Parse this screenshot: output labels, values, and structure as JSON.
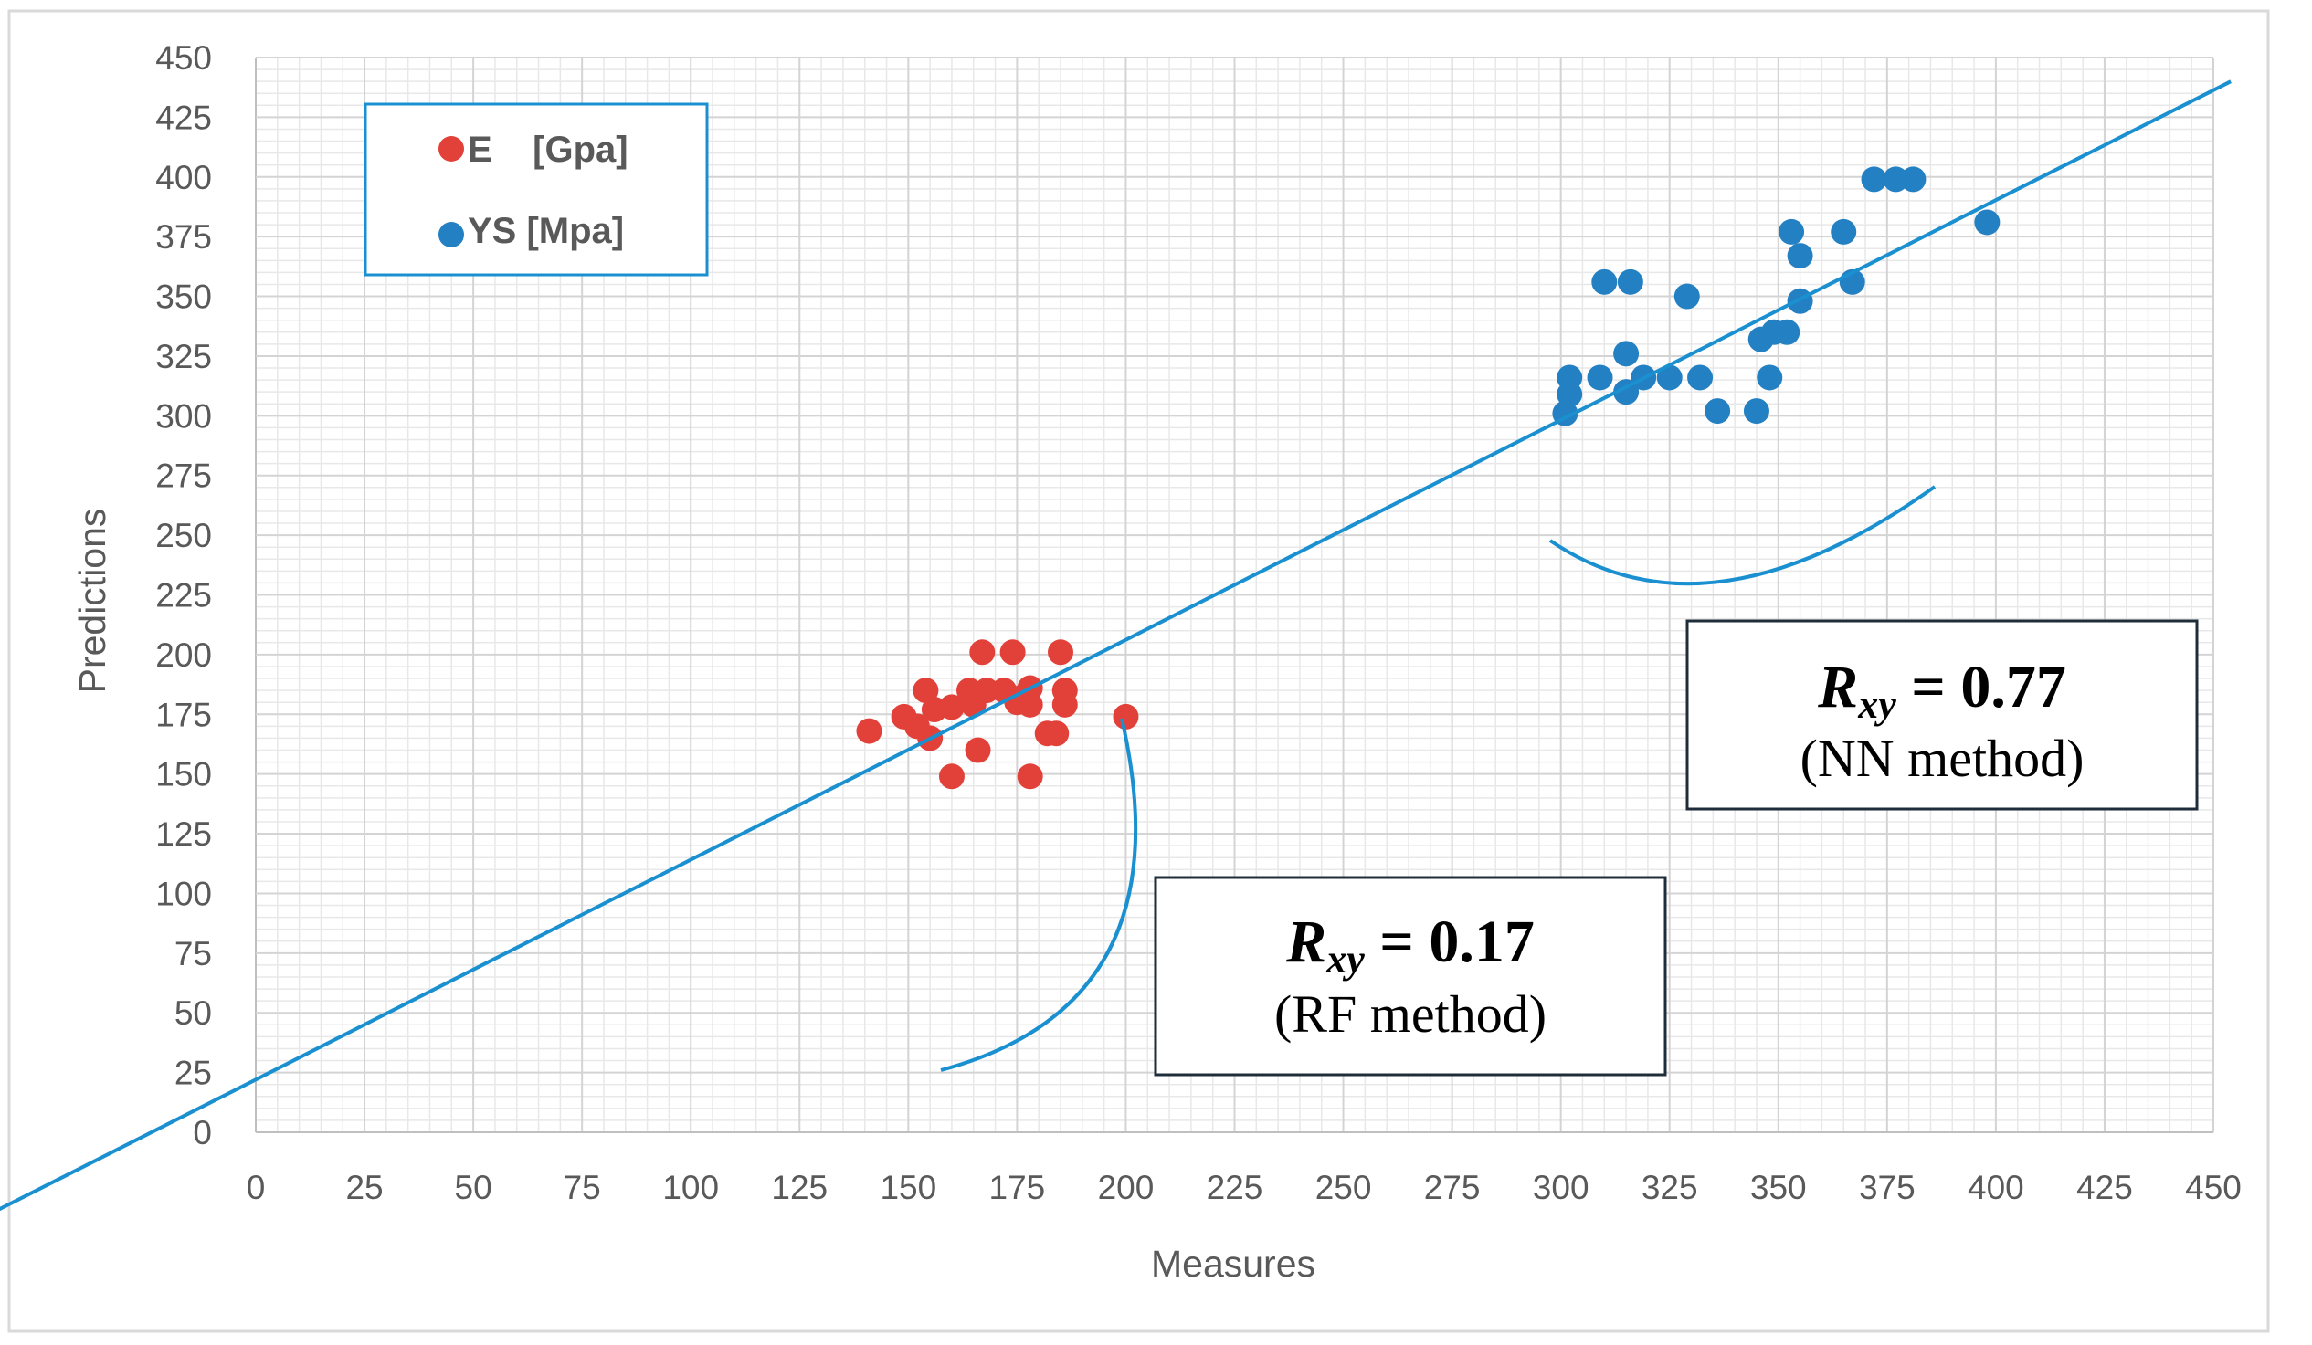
{
  "chart_data": {
    "type": "scatter",
    "xlabel": "Measures",
    "ylabel": "Predictions",
    "xlim": [
      0,
      450
    ],
    "ylim": [
      0,
      450
    ],
    "x_ticks": [
      0,
      25,
      50,
      75,
      100,
      125,
      150,
      175,
      200,
      225,
      250,
      275,
      300,
      325,
      350,
      375,
      400,
      425,
      450
    ],
    "y_ticks": [
      0,
      25,
      50,
      75,
      100,
      125,
      150,
      175,
      200,
      225,
      250,
      275,
      300,
      325,
      350,
      375,
      400,
      425,
      450
    ],
    "grid": true,
    "legend_position": "top-left",
    "series": [
      {
        "name": "E    [Gpa]",
        "color": "#e2413a",
        "points": [
          [
            141,
            168
          ],
          [
            149,
            174
          ],
          [
            152,
            170
          ],
          [
            154,
            185
          ],
          [
            155,
            165
          ],
          [
            156,
            177
          ],
          [
            160,
            178
          ],
          [
            160,
            149
          ],
          [
            164,
            185
          ],
          [
            165,
            179
          ],
          [
            166,
            160
          ],
          [
            167,
            201
          ],
          [
            168,
            185
          ],
          [
            172,
            185
          ],
          [
            174,
            201
          ],
          [
            175,
            180
          ],
          [
            176,
            182
          ],
          [
            178,
            179
          ],
          [
            178,
            149
          ],
          [
            178,
            186
          ],
          [
            182,
            167
          ],
          [
            184,
            167
          ],
          [
            185,
            201
          ],
          [
            186,
            179
          ],
          [
            186,
            185
          ],
          [
            200,
            174
          ]
        ]
      },
      {
        "name": "YS [Mpa]",
        "color": "#2380c3",
        "points": [
          [
            301,
            301
          ],
          [
            302,
            309
          ],
          [
            302,
            316
          ],
          [
            309,
            316
          ],
          [
            310,
            356
          ],
          [
            315,
            310
          ],
          [
            315,
            326
          ],
          [
            316,
            356
          ],
          [
            319,
            316
          ],
          [
            325,
            316
          ],
          [
            329,
            350
          ],
          [
            332,
            316
          ],
          [
            336,
            302
          ],
          [
            345,
            302
          ],
          [
            346,
            332
          ],
          [
            348,
            316
          ],
          [
            349,
            335
          ],
          [
            352,
            335
          ],
          [
            353,
            377
          ],
          [
            355,
            367
          ],
          [
            355,
            348
          ],
          [
            365,
            377
          ],
          [
            367,
            356
          ],
          [
            372,
            399
          ],
          [
            377,
            399
          ],
          [
            381,
            399
          ],
          [
            398,
            381
          ]
        ]
      }
    ],
    "trendline": {
      "color": "#1a90d0",
      "from": [
        -100,
        -70
      ],
      "to": [
        454,
        440
      ]
    },
    "annotations": [
      {
        "main_prefix": "R",
        "main_subscript": "xy",
        "main_value": " = 0.77",
        "sub": "(NN method)",
        "target_series": "YS [Mpa]"
      },
      {
        "main_prefix": "R",
        "main_subscript": "xy",
        "main_value": " = 0.17",
        "sub": "(RF method)",
        "target_series": "E    [Gpa]"
      }
    ]
  }
}
